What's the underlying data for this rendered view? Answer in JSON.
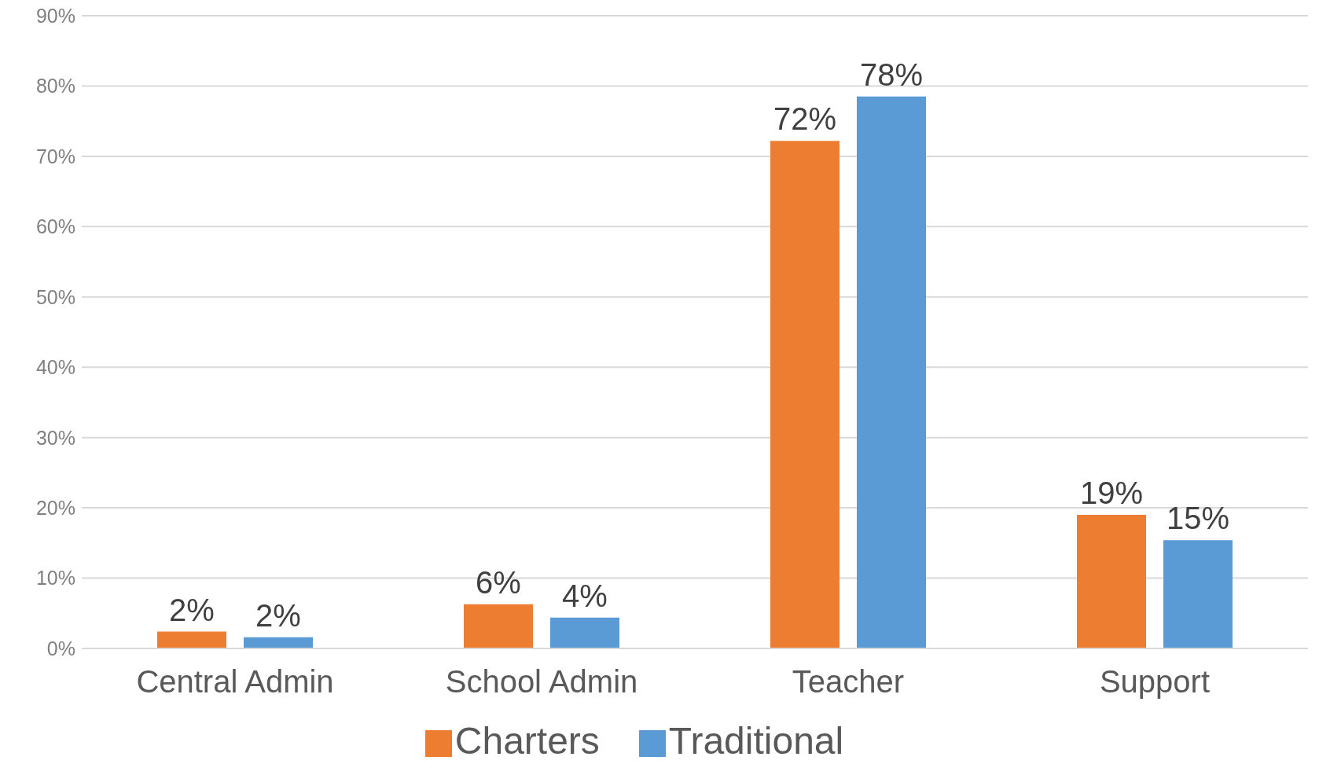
{
  "chart_data": {
    "type": "bar",
    "categories": [
      "Central Admin",
      "School Admin",
      "Teacher",
      "Support"
    ],
    "series": [
      {
        "name": "Charters",
        "color": "#ed7d31",
        "values": [
          2.4,
          6.3,
          72.2,
          19.0
        ],
        "value_labels": [
          "2%",
          "6%",
          "72%",
          "19%"
        ]
      },
      {
        "name": "Traditional",
        "color": "#5b9bd5",
        "values": [
          1.6,
          4.4,
          78.5,
          15.4
        ],
        "value_labels": [
          "2%",
          "4%",
          "78%",
          "15%"
        ]
      }
    ],
    "ylim": [
      0,
      90
    ],
    "yticks": [
      {
        "value": 0,
        "label": "0%"
      },
      {
        "value": 10,
        "label": "10%"
      },
      {
        "value": 20,
        "label": "20%"
      },
      {
        "value": 30,
        "label": "30%"
      },
      {
        "value": 40,
        "label": "40%"
      },
      {
        "value": 50,
        "label": "50%"
      },
      {
        "value": 60,
        "label": "60%"
      },
      {
        "value": 70,
        "label": "70%"
      },
      {
        "value": 80,
        "label": "80%"
      },
      {
        "value": 90,
        "label": "90%"
      }
    ],
    "grid": "y",
    "legend": "bottom"
  }
}
